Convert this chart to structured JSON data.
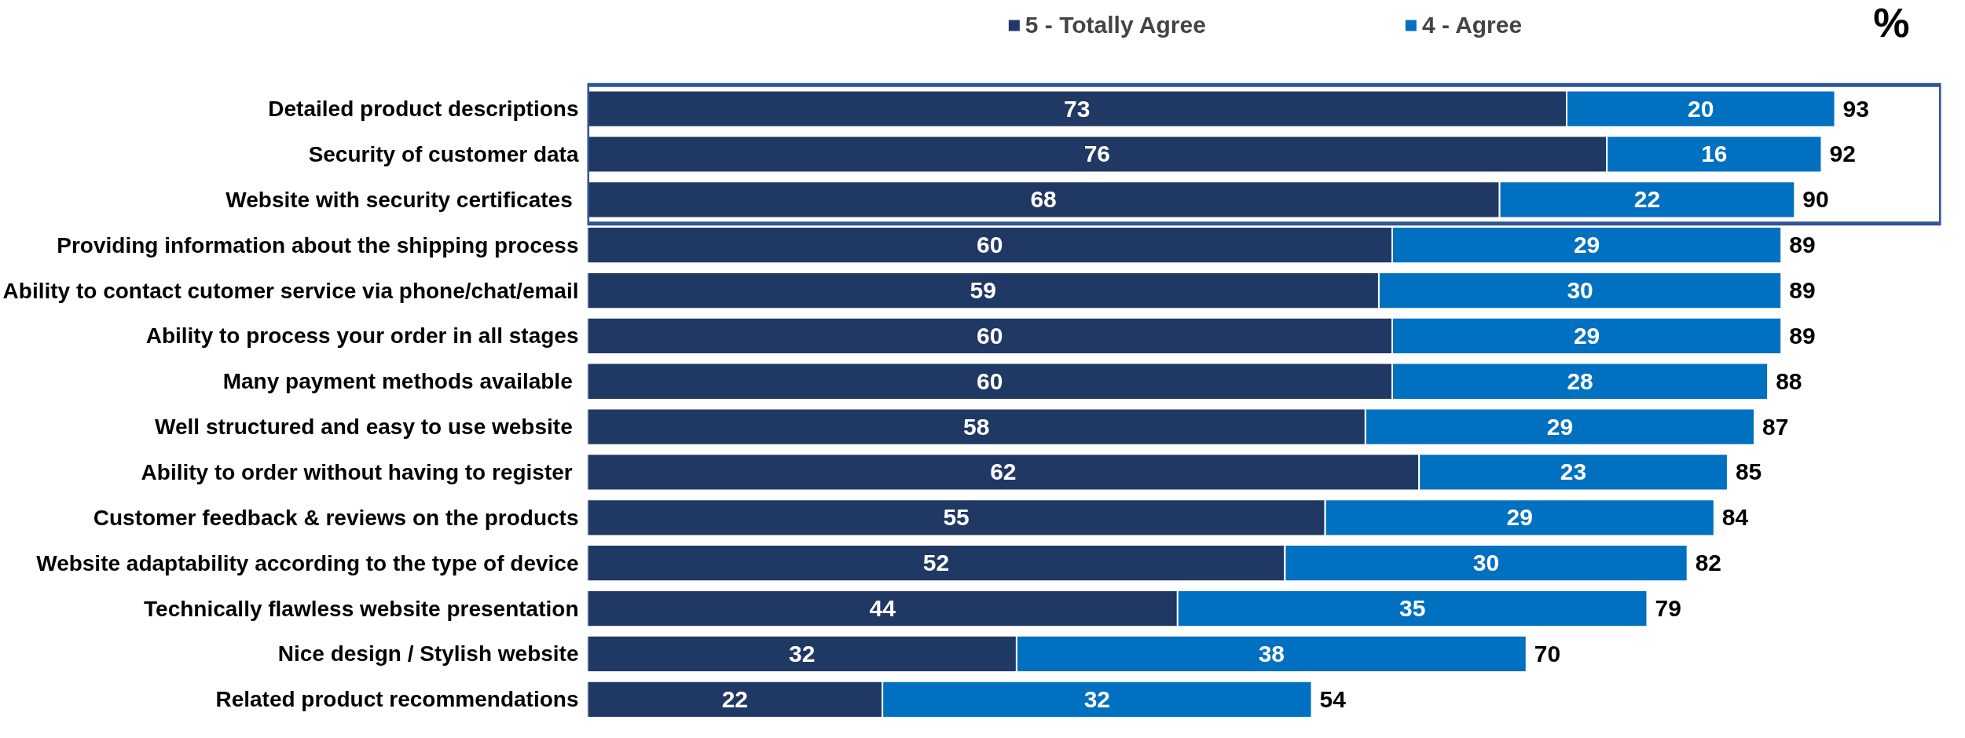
{
  "chart_data": {
    "type": "bar",
    "orientation": "horizontal",
    "stacked": true,
    "data_labels": true,
    "legend": "top",
    "tick_labels": "y",
    "annotations": [
      "%"
    ],
    "categories": [
      "Detailed product descriptions",
      "Security of customer data",
      "Website with security certificates ",
      "Providing information about the shipping process",
      "Ability to contact cutomer service via phone/chat/email",
      "Ability to process your order in all stages",
      "Many payment methods available ",
      "Well structured and easy to use website ",
      "Ability to order without having to register ",
      "Customer feedback & reviews on the products",
      "Website adaptability according to the type of device",
      "Technically flawless website presentation",
      "Nice design / Stylish website",
      "Related product recommendations"
    ],
    "series": [
      {
        "name": "5 - Totally Agree",
        "color": "#203864",
        "values": [
          73,
          76,
          68,
          60,
          59,
          60,
          60,
          58,
          62,
          55,
          52,
          44,
          32,
          22
        ]
      },
      {
        "name": "4 - Agree",
        "color": "#0070c0",
        "values": [
          20,
          16,
          22,
          29,
          30,
          29,
          28,
          29,
          23,
          29,
          30,
          35,
          38,
          32
        ]
      }
    ],
    "totals": [
      "93",
      "92",
      "90",
      "89",
      "89",
      "89",
      "88",
      "87",
      "85",
      "84",
      "82",
      "79",
      "70",
      "54"
    ]
  }
}
